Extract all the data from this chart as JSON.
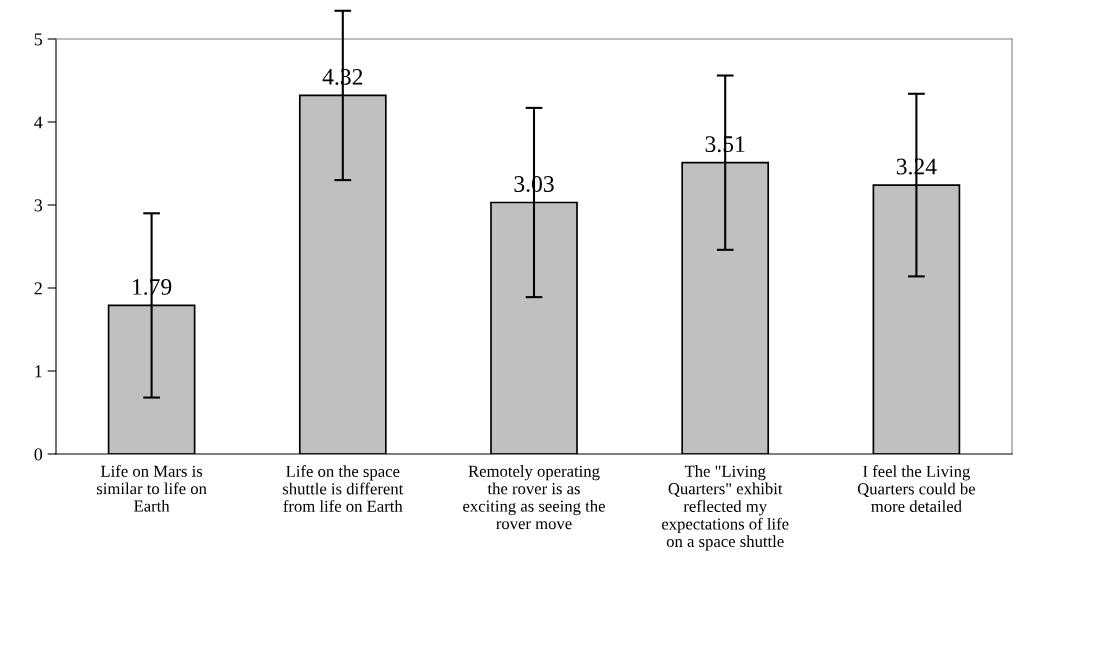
{
  "chart_data": {
    "type": "bar",
    "categories": [
      "Life on Mars is\nsimilar to life on\nEarth",
      "Life on the space\nshuttle is different\nfrom life on Earth",
      "Remotely operating\nthe rover is as\nexciting as seeing the\nrover move",
      "The \"Living\nQuarters\" exhibit\nreflected my\nexpectations of life\non a space shuttle",
      "I feel the Living\nQuarters could be\nmore detailed"
    ],
    "values": [
      1.79,
      4.32,
      3.03,
      3.51,
      3.24
    ],
    "errors": [
      1.11,
      1.02,
      1.14,
      1.05,
      1.1
    ],
    "color": "#c0c0c0",
    "ylim": [
      0,
      5
    ],
    "yticks": [
      0,
      1,
      2,
      3,
      4,
      5
    ],
    "data_labels": true,
    "grid": false,
    "legend": false
  }
}
